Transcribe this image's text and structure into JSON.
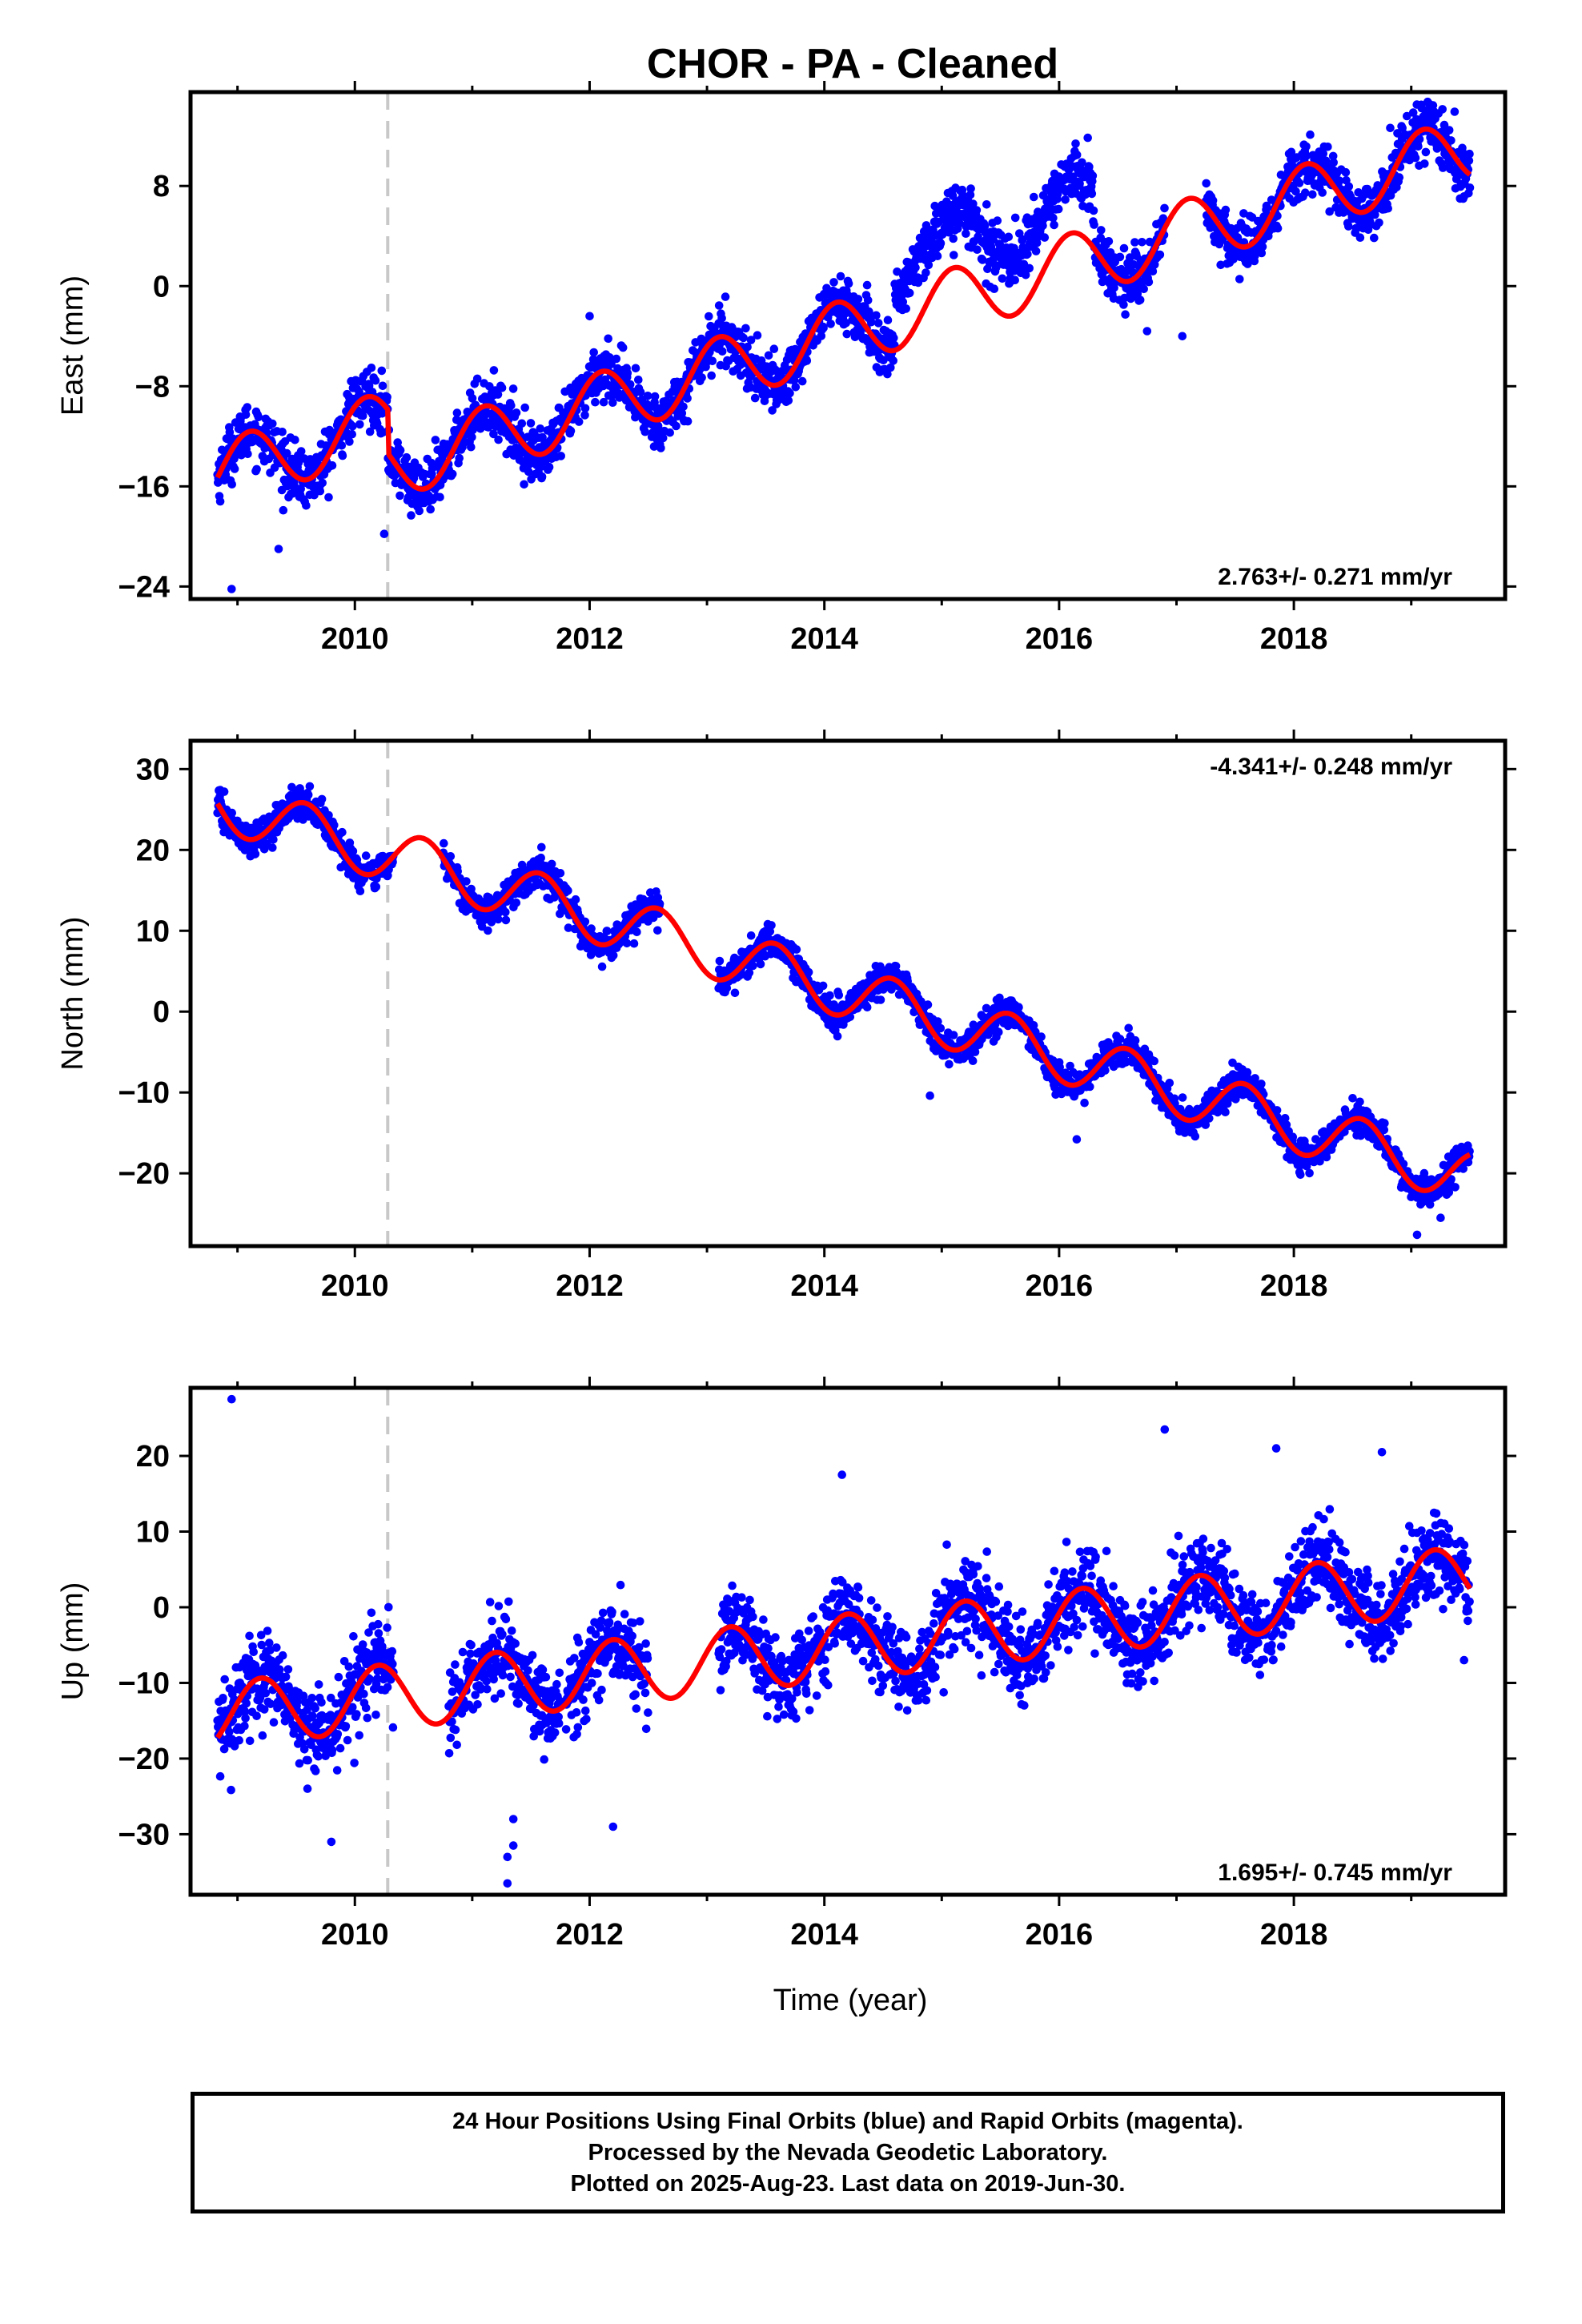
{
  "chart_data": {
    "type": "scatter",
    "title": "CHOR  - PA - Cleaned",
    "xlabel": "Time (year)",
    "xlim": [
      2008.6,
      2019.8
    ],
    "xticks": [
      2010,
      2012,
      2014,
      2016,
      2018
    ],
    "offset_line_x": 2010.28,
    "colors": {
      "points": "#0000ff",
      "fit": "#ff0000",
      "offset_line": "#c8c8c8"
    },
    "panels": [
      {
        "name": "east",
        "ylabel": "East (mm)",
        "ylim": [
          -25,
          15.5
        ],
        "yticks": [
          -24,
          -16,
          -8,
          0,
          8
        ],
        "rate_label": "2.763+/- 0.271 mm/yr",
        "rate_position": "bottom-right",
        "trend": {
          "at2009": -14.5,
          "rate": 2.763
        },
        "seasonal": {
          "amp": 2.6,
          "phase_year": 2008.85
        },
        "noise": 1.1,
        "segments": [
          {
            "start": 2008.83,
            "end": 2010.33,
            "offset": 0.0
          },
          {
            "start": 2010.33,
            "end": 2013.0,
            "offset": 0.0
          },
          {
            "start": 2013.0,
            "end": 2014.6,
            "offset": 0.0
          },
          {
            "start": 2014.6,
            "end": 2016.3,
            "offset": 4.5
          },
          {
            "start": 2016.3,
            "end": 2016.9,
            "offset": 0.0
          },
          {
            "start": 2017.25,
            "end": 2019.5,
            "offset": 0.0
          }
        ],
        "fit_steps": [
          {
            "x": 2010.28,
            "dy": -3.5
          }
        ],
        "outliers": [
          [
            2008.95,
            -24.2
          ],
          [
            2009.35,
            -21.0
          ],
          [
            2010.25,
            -19.8
          ],
          [
            2017.05,
            -4.0
          ],
          [
            2016.75,
            -3.6
          ],
          [
            2012.0,
            -2.4
          ]
        ]
      },
      {
        "name": "north",
        "ylabel": "North (mm)",
        "ylim": [
          -29,
          33.5
        ],
        "yticks": [
          -20,
          -10,
          0,
          10,
          20,
          30
        ],
        "rate_label": "-4.341+/- 0.248 mm/yr",
        "rate_position": "top-right",
        "trend": {
          "at2009": 25.0,
          "rate": -4.341
        },
        "seasonal": {
          "amp": 3.3,
          "phase_year": 2009.33
        },
        "noise": 1.0,
        "segments": [
          {
            "start": 2008.83,
            "end": 2010.1,
            "offset": 0.0
          },
          {
            "start": 2010.12,
            "end": 2010.33,
            "offset": 0.0
          },
          {
            "start": 2010.75,
            "end": 2012.6,
            "offset": 0.0
          },
          {
            "start": 2013.1,
            "end": 2019.5,
            "offset": 0.0
          }
        ],
        "fit_steps": [],
        "outliers": [
          [
            2019.05,
            -27.6
          ],
          [
            2014.9,
            -10.4
          ],
          [
            2016.15,
            -15.8
          ],
          [
            2019.25,
            -25.5
          ]
        ]
      },
      {
        "name": "up",
        "ylabel": "Up (mm)",
        "ylim": [
          -38,
          29
        ],
        "yticks": [
          -30,
          -20,
          -10,
          0,
          10,
          20
        ],
        "rate_label": "1.695+/- 0.745 mm/yr",
        "rate_position": "bottom-right",
        "trend": {
          "at2009": -14.0,
          "rate": 1.695
        },
        "seasonal": {
          "amp": 4.3,
          "phase_year": 2008.95
        },
        "noise": 2.8,
        "segments": [
          {
            "start": 2008.83,
            "end": 2010.33,
            "offset": 0.0
          },
          {
            "start": 2010.8,
            "end": 2011.75,
            "offset": 0.0
          },
          {
            "start": 2011.8,
            "end": 2012.5,
            "offset": 0.0
          },
          {
            "start": 2013.1,
            "end": 2019.5,
            "offset": 0.0
          }
        ],
        "fit_steps": [
          {
            "x": 2010.28,
            "dy": 0.0
          }
        ],
        "outliers": [
          [
            2008.95,
            27.5
          ],
          [
            2016.9,
            23.5
          ],
          [
            2017.85,
            21.0
          ],
          [
            2011.3,
            -36.5
          ],
          [
            2011.3,
            -33.0
          ],
          [
            2011.35,
            -31.5
          ],
          [
            2011.35,
            -28.0
          ],
          [
            2014.15,
            17.5
          ],
          [
            2018.75,
            20.5
          ],
          [
            2012.2,
            -29.0
          ],
          [
            2009.8,
            -31.0
          ],
          [
            2019.45,
            -7.0
          ]
        ]
      }
    ],
    "footer_lines": [
      "24 Hour Positions Using Final Orbits (blue) and Rapid Orbits (magenta).",
      "Processed by the Nevada Geodetic Laboratory.",
      "Plotted on 2025-Aug-23. Last data on 2019-Jun-30."
    ]
  }
}
